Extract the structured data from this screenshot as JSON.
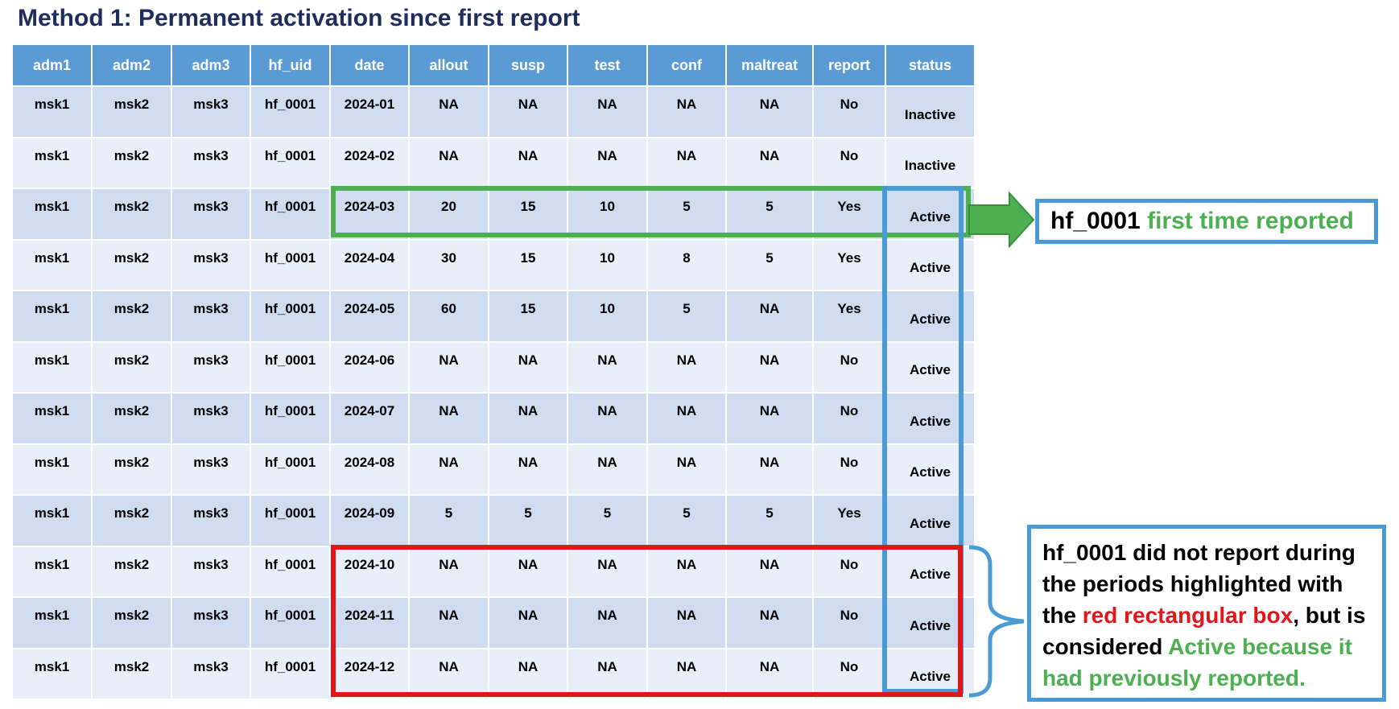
{
  "title": "Method 1: Permanent activation since first report",
  "columns": [
    "adm1",
    "adm2",
    "adm3",
    "hf_uid",
    "date",
    "allout",
    "susp",
    "test",
    "conf",
    "maltreat",
    "report",
    "status"
  ],
  "rows": [
    [
      "msk1",
      "msk2",
      "msk3",
      "hf_0001",
      "2024-01",
      "NA",
      "NA",
      "NA",
      "NA",
      "NA",
      "No",
      "Inactive"
    ],
    [
      "msk1",
      "msk2",
      "msk3",
      "hf_0001",
      "2024-02",
      "NA",
      "NA",
      "NA",
      "NA",
      "NA",
      "No",
      "Inactive"
    ],
    [
      "msk1",
      "msk2",
      "msk3",
      "hf_0001",
      "2024-03",
      "20",
      "15",
      "10",
      "5",
      "5",
      "Yes",
      "Active"
    ],
    [
      "msk1",
      "msk2",
      "msk3",
      "hf_0001",
      "2024-04",
      "30",
      "15",
      "10",
      "8",
      "5",
      "Yes",
      "Active"
    ],
    [
      "msk1",
      "msk2",
      "msk3",
      "hf_0001",
      "2024-05",
      "60",
      "15",
      "10",
      "5",
      "NA",
      "Yes",
      "Active"
    ],
    [
      "msk1",
      "msk2",
      "msk3",
      "hf_0001",
      "2024-06",
      "NA",
      "NA",
      "NA",
      "NA",
      "NA",
      "No",
      "Active"
    ],
    [
      "msk1",
      "msk2",
      "msk3",
      "hf_0001",
      "2024-07",
      "NA",
      "NA",
      "NA",
      "NA",
      "NA",
      "No",
      "Active"
    ],
    [
      "msk1",
      "msk2",
      "msk3",
      "hf_0001",
      "2024-08",
      "NA",
      "NA",
      "NA",
      "NA",
      "NA",
      "No",
      "Active"
    ],
    [
      "msk1",
      "msk2",
      "msk3",
      "hf_0001",
      "2024-09",
      "5",
      "5",
      "5",
      "5",
      "5",
      "Yes",
      "Active"
    ],
    [
      "msk1",
      "msk2",
      "msk3",
      "hf_0001",
      "2024-10",
      "NA",
      "NA",
      "NA",
      "NA",
      "NA",
      "No",
      "Active"
    ],
    [
      "msk1",
      "msk2",
      "msk3",
      "hf_0001",
      "2024-11",
      "NA",
      "NA",
      "NA",
      "NA",
      "NA",
      "No",
      "Active"
    ],
    [
      "msk1",
      "msk2",
      "msk3",
      "hf_0001",
      "2024-12",
      "NA",
      "NA",
      "NA",
      "NA",
      "NA",
      "No",
      "Active"
    ]
  ],
  "callout_first": {
    "id": "hf_0001",
    "text": "first time reported"
  },
  "callout_note": {
    "part1": "hf_0001 did not report during the periods highlighted with the",
    "red": "red rectangular box",
    "part2": ", but is considered",
    "green": "Active because it had previously reported."
  },
  "colors": {
    "header": "#5b9bd5",
    "row_dark": "#cfdcf0",
    "row_light": "#e9eff8",
    "green": "#4caf50",
    "blue": "#4a9ad8",
    "red": "#e0161b",
    "title": "#1f2d5c"
  }
}
